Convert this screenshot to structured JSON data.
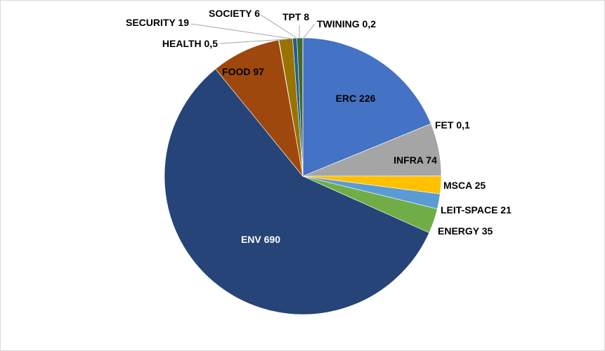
{
  "chart_data": {
    "type": "pie",
    "title": "",
    "start_angle": "top, clockwise",
    "slices": [
      {
        "name": "ERC",
        "value": 226,
        "label": "ERC 226",
        "color": "#4472C4"
      },
      {
        "name": "FET",
        "value": 0.1,
        "label": "FET  0,1",
        "color": "#ED7D31"
      },
      {
        "name": "INFRA",
        "value": 74,
        "label": "INFRA 74",
        "color": "#A5A5A5"
      },
      {
        "name": "MSCA",
        "value": 25,
        "label": "MSCA 25",
        "color": "#FFC000"
      },
      {
        "name": "LEIT-SPACE",
        "value": 21,
        "label": "LEIT-SPACE 21",
        "color": "#5B9BD5"
      },
      {
        "name": "ENERGY",
        "value": 35,
        "label": "ENERGY 35",
        "color": "#70AD47"
      },
      {
        "name": "ENV",
        "value": 690,
        "label": "ENV 690",
        "color": "#264478"
      },
      {
        "name": "FOOD",
        "value": 97,
        "label": "FOOD 97",
        "color": "#9E480E"
      },
      {
        "name": "HEALTH",
        "value": 0.5,
        "label": "HEALTH  0,5",
        "color": "#636363"
      },
      {
        "name": "SECURITY",
        "value": 19,
        "label": "SECURITY 19",
        "color": "#997300"
      },
      {
        "name": "SOCIETY",
        "value": 6,
        "label": "SOCIETY 6",
        "color": "#255E91"
      },
      {
        "name": "TPT",
        "value": 8,
        "label": "TPT 8",
        "color": "#43682B"
      },
      {
        "name": "TWINING",
        "value": 0.2,
        "label": "TWINING  0,2",
        "color": "#698ED0"
      }
    ]
  }
}
